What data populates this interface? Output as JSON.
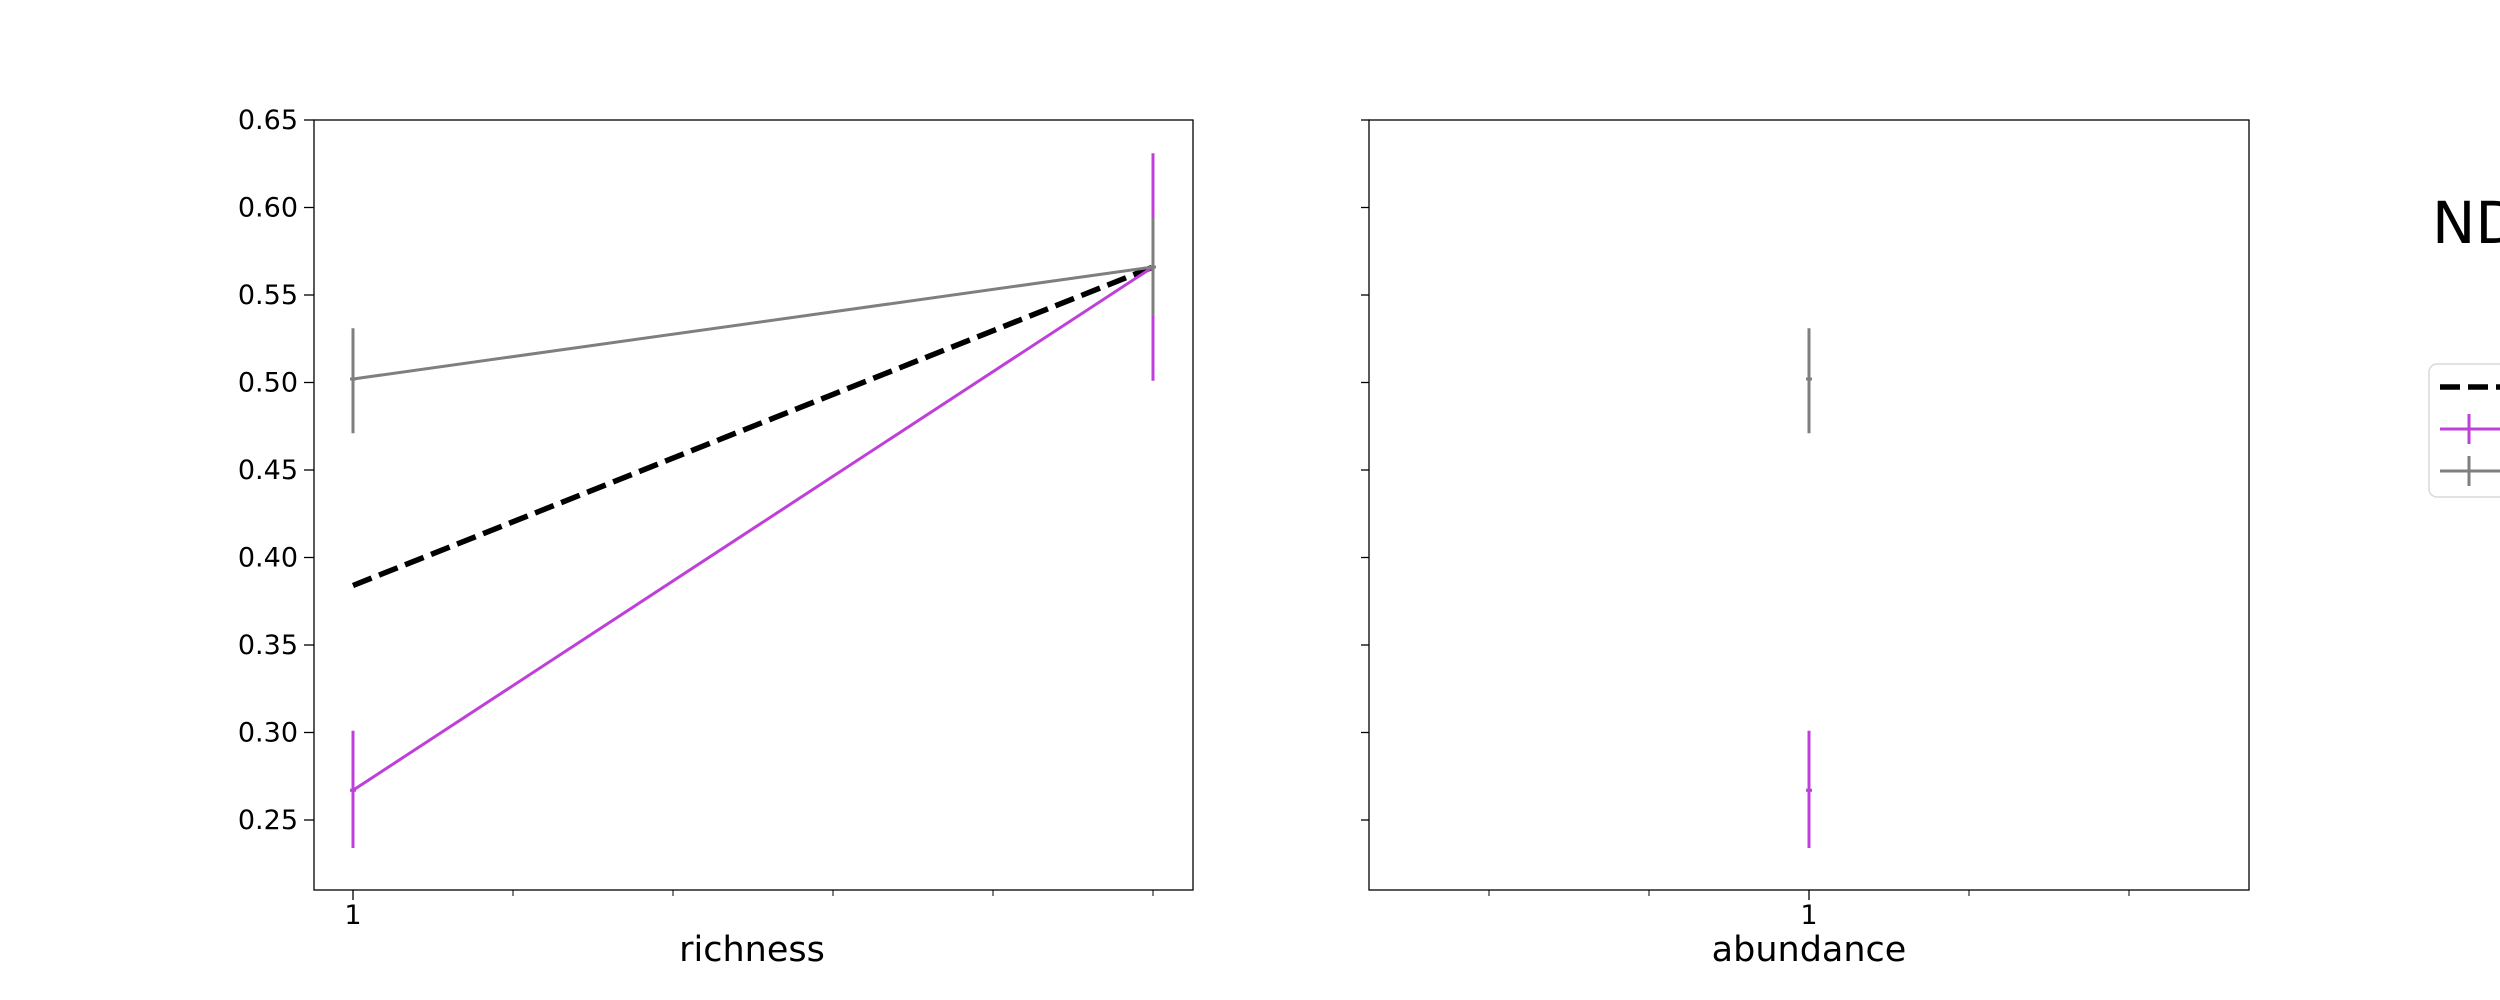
{
  "chart_data": {
    "type": "line",
    "legend": {
      "title": "ND",
      "placement": "right (cropped)",
      "entries": [
        {
          "style": "dashed",
          "color": "#000000",
          "marker": "none"
        },
        {
          "style": "solid",
          "color": "#bf40d9",
          "marker": "errorbar"
        },
        {
          "style": "solid",
          "color": "#7f7f7f",
          "marker": "errorbar"
        }
      ]
    },
    "panels": [
      {
        "xlabel": "richness",
        "ylabel": "",
        "xtick_labels": [
          "1"
        ],
        "ylim": [
          0.21,
          0.65
        ],
        "yticks": [
          0.25,
          0.3,
          0.35,
          0.4,
          0.45,
          0.5,
          0.55,
          0.6,
          0.65
        ],
        "ytick_labels": [
          "0.25",
          "0.30",
          "0.35",
          "0.40",
          "0.45",
          "0.50",
          "0.55",
          "0.60",
          "0.65"
        ],
        "series": [
          {
            "style": "dashed",
            "color": "#000000",
            "x": [
              1,
              6
            ],
            "y": [
              0.384,
              0.566
            ]
          },
          {
            "style": "solid",
            "color": "#bf40d9",
            "x": [
              1,
              6
            ],
            "y": [
              0.267,
              0.566
            ],
            "err_low": [
              0.234,
              0.501
            ],
            "err_high": [
              0.301,
              0.631
            ]
          },
          {
            "style": "solid",
            "color": "#7f7f7f",
            "x": [
              1,
              6
            ],
            "y": [
              0.502,
              0.566
            ],
            "err_low": [
              0.471,
              0.538
            ],
            "err_high": [
              0.531,
              0.594
            ]
          }
        ]
      },
      {
        "xlabel": "abundance",
        "ylabel": "",
        "xtick_labels": [
          "1"
        ],
        "ylim": [
          0.21,
          0.65
        ],
        "series": [
          {
            "style": "solid",
            "color": "#bf40d9",
            "x": [
              1
            ],
            "y": [
              0.267
            ],
            "err_low": [
              0.234
            ],
            "err_high": [
              0.301
            ]
          },
          {
            "style": "solid",
            "color": "#7f7f7f",
            "x": [
              1
            ],
            "y": [
              0.502
            ],
            "err_low": [
              0.471
            ],
            "err_high": [
              0.531
            ]
          }
        ]
      }
    ]
  }
}
